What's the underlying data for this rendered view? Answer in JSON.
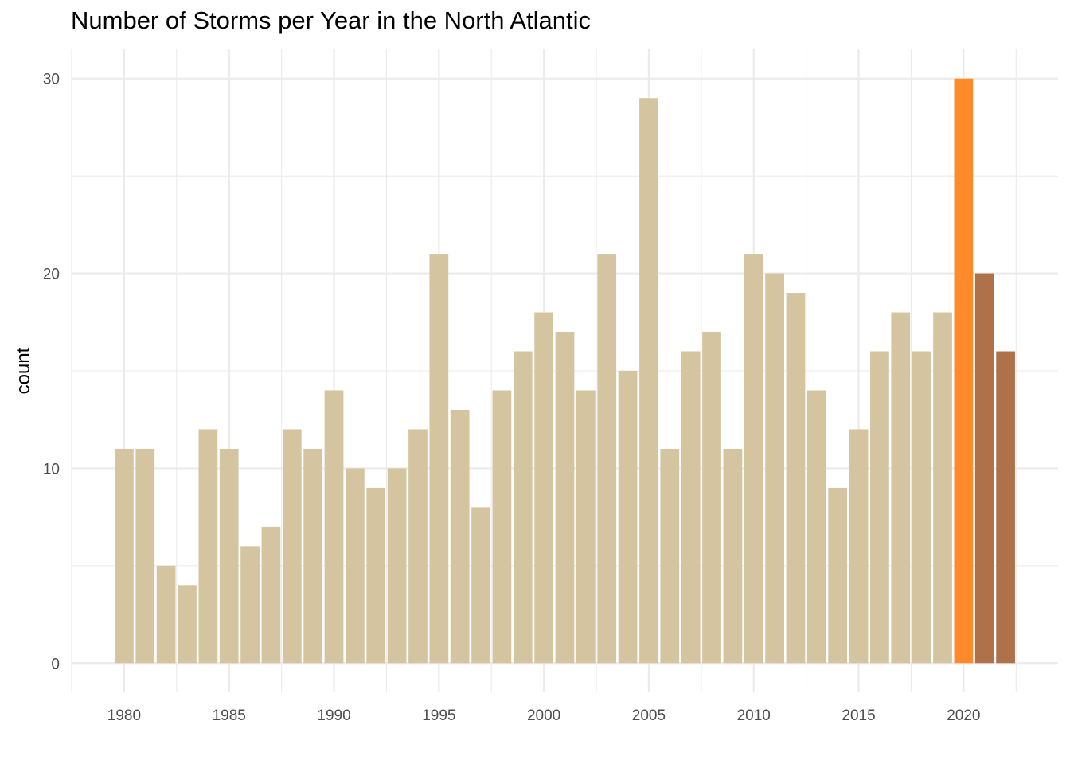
{
  "chart_data": {
    "type": "bar",
    "title": "Number of Storms per Year in the North Atlantic",
    "xlabel": "",
    "ylabel": "count",
    "x_tick_labels": [
      "1980",
      "1985",
      "1990",
      "1995",
      "2000",
      "2005",
      "2010",
      "2015",
      "2020"
    ],
    "y_tick_labels": [
      "0",
      "10",
      "20",
      "30"
    ],
    "xlim": [
      1977.5,
      2024.5
    ],
    "ylim": [
      -1.5,
      31.5
    ],
    "grid": true,
    "categories": [
      1980,
      1981,
      1982,
      1983,
      1984,
      1985,
      1986,
      1987,
      1988,
      1989,
      1990,
      1991,
      1992,
      1993,
      1994,
      1995,
      1996,
      1997,
      1998,
      1999,
      2000,
      2001,
      2002,
      2003,
      2004,
      2005,
      2006,
      2007,
      2008,
      2009,
      2010,
      2011,
      2012,
      2013,
      2014,
      2015,
      2016,
      2017,
      2018,
      2019,
      2020,
      2021,
      2022
    ],
    "values": [
      11,
      11,
      5,
      4,
      12,
      11,
      6,
      7,
      12,
      11,
      14,
      10,
      9,
      10,
      12,
      21,
      13,
      8,
      14,
      16,
      18,
      17,
      14,
      21,
      15,
      29,
      11,
      16,
      17,
      11,
      21,
      20,
      19,
      14,
      9,
      12,
      16,
      18,
      16,
      18,
      30,
      20,
      16
    ],
    "colors": {
      "default": "#D4C5A0",
      "2020": "#FF8A2A",
      "2021": "#AE714A",
      "2022": "#AE714A",
      "grid": "#EBEBEB",
      "tick_text": "#4D4D4D"
    }
  }
}
